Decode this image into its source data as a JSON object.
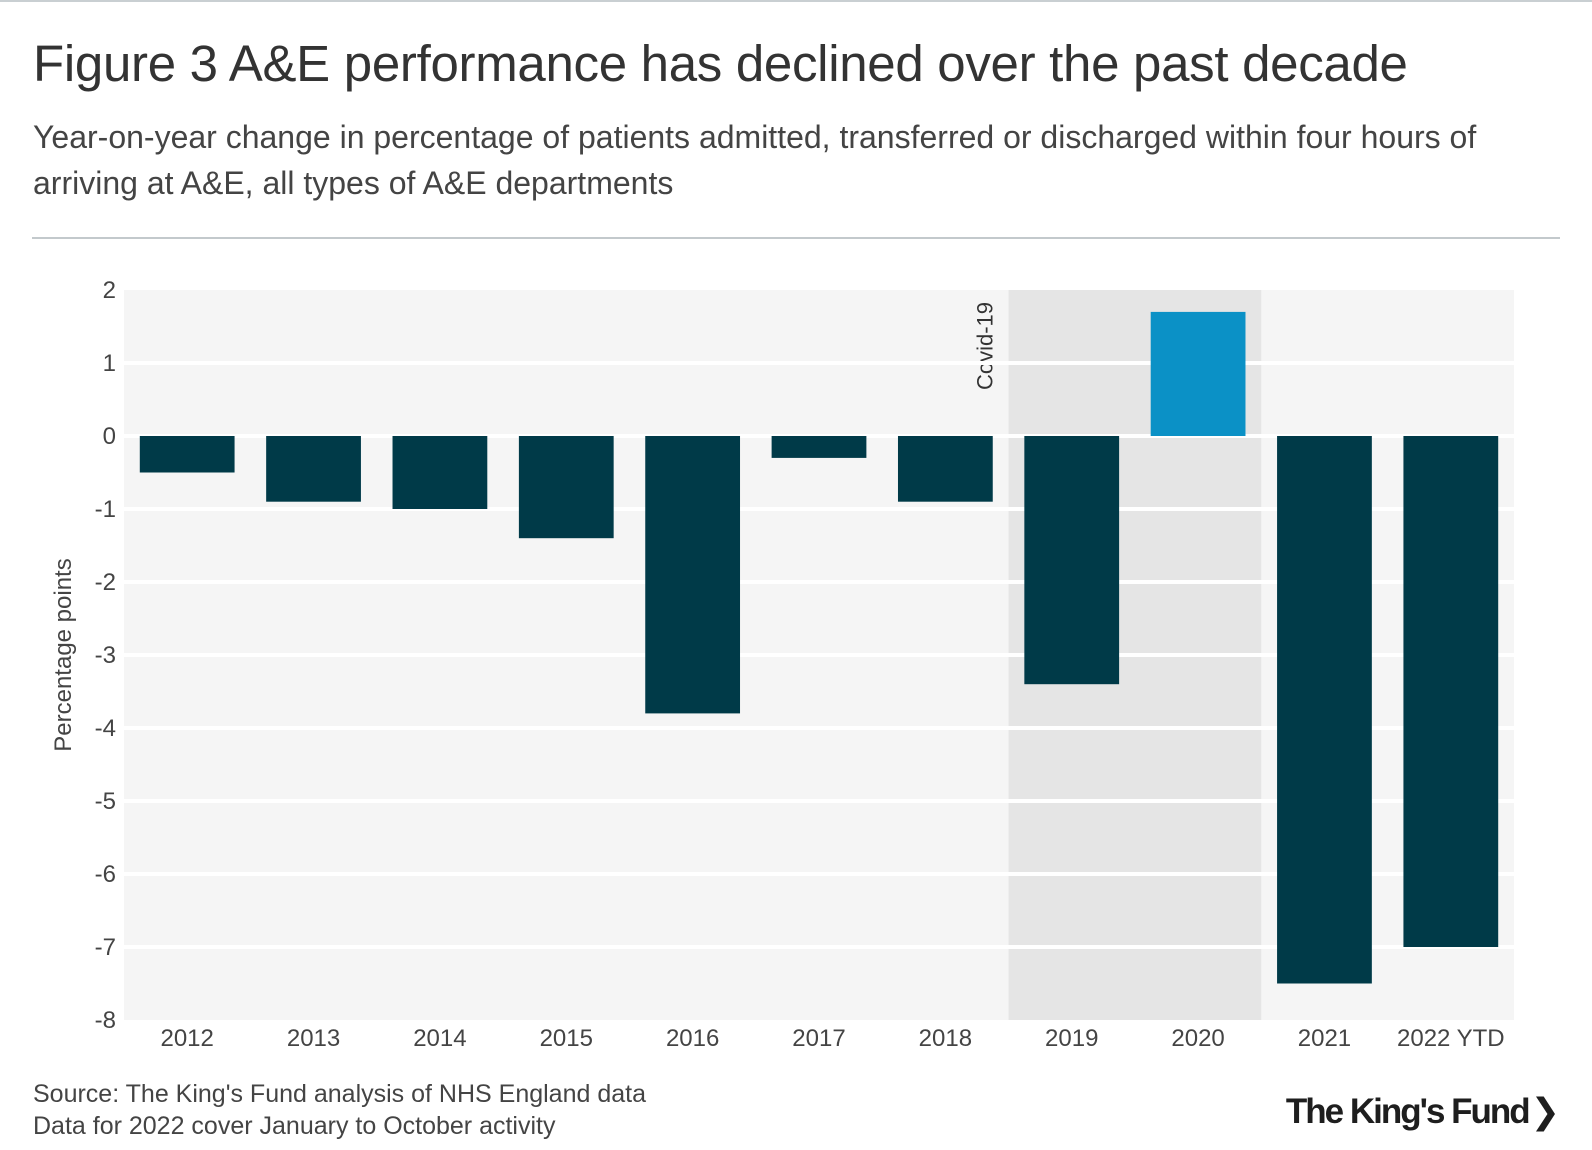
{
  "header": {
    "title": "Figure 3 A&E performance has declined over the past decade",
    "subtitle": "Year-on-year change in percentage of patients admitted, transferred or discharged within four hours of arriving at A&E, all types of A&E departments"
  },
  "chart_data": {
    "type": "bar",
    "title": "Figure 3 A&E performance has declined over the past decade",
    "subtitle": "Year-on-year change in percentage of patients admitted, transferred or discharged within four hours of arriving at A&E, all types of A&E departments",
    "xlabel": "",
    "ylabel": "Percentage points",
    "ylim": [
      -8,
      2
    ],
    "yticks": [
      2,
      1,
      0,
      -1,
      -2,
      -3,
      -4,
      -5,
      -6,
      -7,
      -8
    ],
    "categories": [
      "2012",
      "2013",
      "2014",
      "2015",
      "2016",
      "2017",
      "2018",
      "2019",
      "2020",
      "2021",
      "2022 YTD"
    ],
    "values": [
      -0.5,
      -0.9,
      -1.0,
      -1.4,
      -3.8,
      -0.3,
      -0.9,
      -3.4,
      1.7,
      -7.5,
      -7.0
    ],
    "colors": {
      "negative": "#003a48",
      "positive": "#0b91c6",
      "plot_background": "#f5f5f5",
      "highlight_band": "#e5e5e5",
      "gridline": "#ffffff"
    },
    "highlight": {
      "label": "Covid-19",
      "from_category": "2019",
      "to_category": "2020"
    },
    "grid": true,
    "legend": "none"
  },
  "footer": {
    "source": "Source: The King's Fund analysis of NHS England data",
    "note": "Data for 2022 cover January to October activity",
    "logo_text": "The King's Fund",
    "logo_chevron": "❯"
  }
}
